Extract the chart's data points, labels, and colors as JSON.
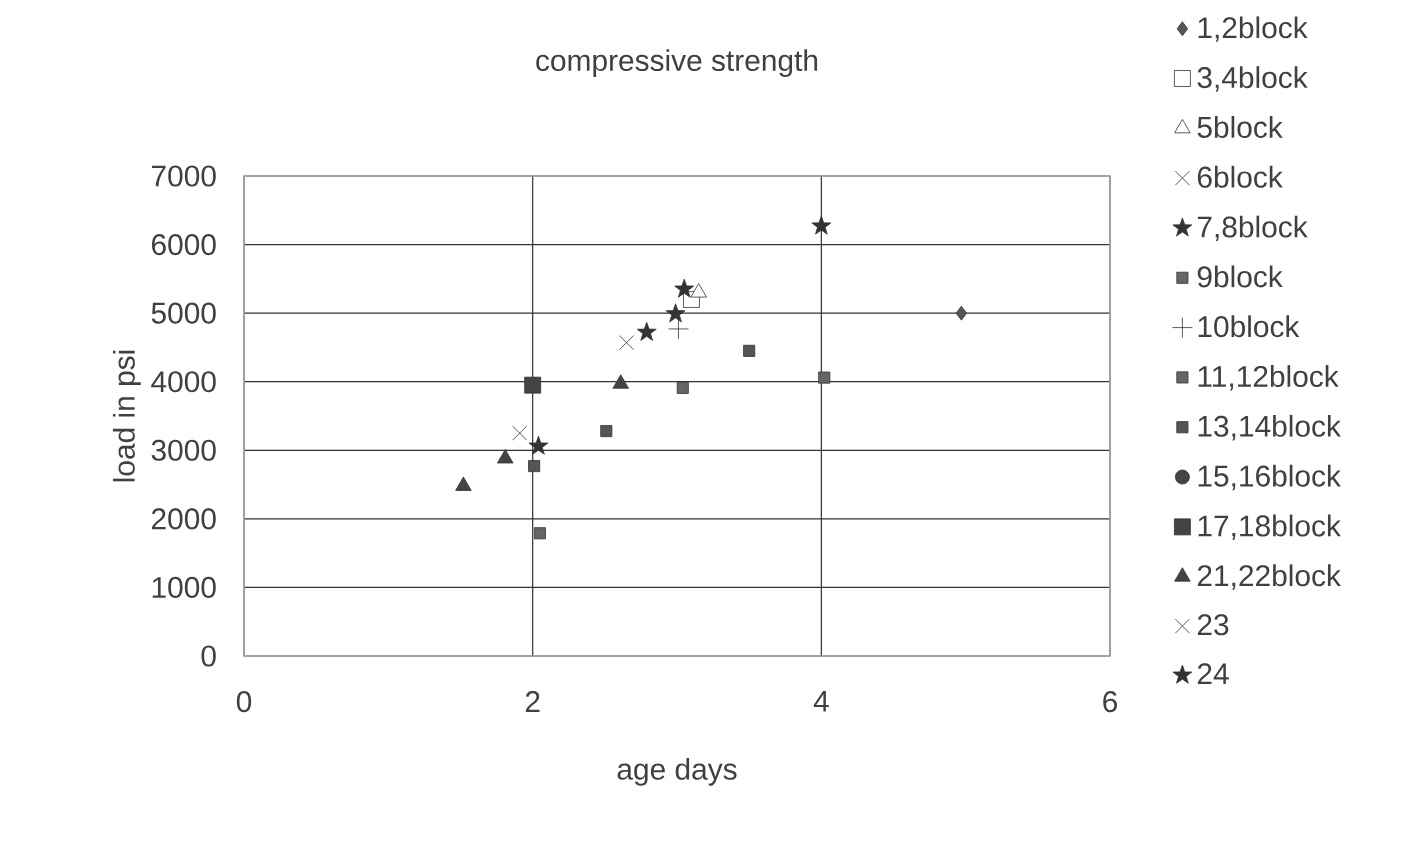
{
  "chart_data": {
    "type": "scatter",
    "title": "compressive strength",
    "xlabel": "age days",
    "ylabel": "load in psi",
    "xlim": [
      0,
      6
    ],
    "xticks": [
      0,
      2,
      4,
      6
    ],
    "ylim": [
      0,
      7000
    ],
    "yticks": [
      0,
      1000,
      2000,
      3000,
      4000,
      5000,
      6000,
      7000
    ],
    "grid": true,
    "legend": "right",
    "series": [
      {
        "name": "1,2block",
        "color": "#555555",
        "marker": "diamond",
        "x": [
          4.97
        ],
        "values": [
          5000
        ]
      },
      {
        "name": "3,4block",
        "color": "#ffffff",
        "marker": "square",
        "x": [
          3.1
        ],
        "values": [
          5200
        ]
      },
      {
        "name": "5block",
        "color": "#ffffff",
        "marker": "triangle",
        "x": [
          3.15
        ],
        "values": [
          5300
        ]
      },
      {
        "name": "6block",
        "color": "#333333",
        "marker": "cross",
        "x": [
          1.91
        ],
        "values": [
          3250
        ]
      },
      {
        "name": "7,8block",
        "color": "#333333",
        "marker": "star",
        "x": [
          2.04,
          2.79,
          2.99
        ],
        "values": [
          3060,
          4720,
          4990
        ]
      },
      {
        "name": "9block",
        "color": "#666666",
        "x": [
          4.02
        ],
        "values": [
          4060
        ]
      },
      {
        "name": "10block",
        "color": "#333333",
        "marker": "plus",
        "x": [
          3.01
        ],
        "values": [
          4770
        ]
      },
      {
        "name": "11,12block",
        "color": "#666666",
        "x": [
          2.05,
          3.04
        ],
        "values": [
          1790,
          3910
        ]
      },
      {
        "name": "13,14block",
        "color": "#555555",
        "x": [
          2.01,
          2.51,
          3.5
        ],
        "values": [
          2770,
          3280,
          4450
        ]
      },
      {
        "name": "15,16block",
        "color": "#444444",
        "marker": "circle"
      },
      {
        "name": "17,18block",
        "color": "#444444",
        "marker": "square",
        "x": [
          2.0
        ],
        "values": [
          3950
        ]
      },
      {
        "name": "21,22block",
        "color": "#444444",
        "marker": "triangle",
        "x": [
          1.52,
          1.81,
          2.61
        ],
        "values": [
          2480,
          2880,
          3970
        ]
      },
      {
        "name": "23",
        "color": "#333333",
        "marker": "cross",
        "x": [
          2.65
        ],
        "values": [
          4570
        ]
      },
      {
        "name": "24",
        "color": "#333333",
        "marker": "star",
        "x": [
          3.05,
          4.0
        ],
        "values": [
          5350,
          6270
        ]
      }
    ]
  }
}
